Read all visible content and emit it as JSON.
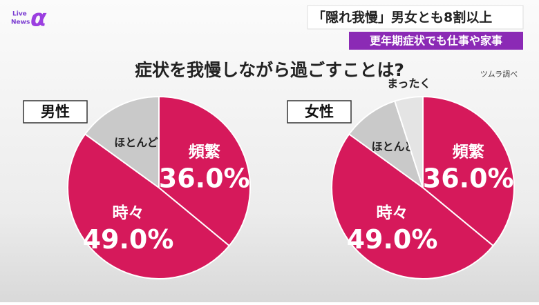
{
  "logo": {
    "line1": "Live",
    "line2": "News",
    "mark": "α"
  },
  "headline": "「隠れ我慢」男女とも8割以上",
  "subheadline": "更年期症状でも仕事や家事",
  "question": "症状を我慢しながら過ごすことは?",
  "source": "ツムラ調べ",
  "chart_data": [
    {
      "type": "pie",
      "title": "男性",
      "categories": [
        "頻繁",
        "時々",
        "ほとんど"
      ],
      "values": [
        36.0,
        49.0,
        15.0
      ],
      "value_labels": [
        "36.0%",
        "49.0%",
        null
      ],
      "colors": [
        "#d6195b",
        "#d6195b",
        "#c9c9c9"
      ]
    },
    {
      "type": "pie",
      "title": "女性",
      "categories": [
        "頻繁",
        "時々",
        "ほとんど",
        "まったく"
      ],
      "values": [
        36.0,
        49.0,
        10.0,
        5.0
      ],
      "value_labels": [
        "36.0%",
        "49.0%",
        null,
        null
      ],
      "colors": [
        "#d6195b",
        "#d6195b",
        "#c9c9c9",
        "#e4e4e4"
      ]
    }
  ]
}
